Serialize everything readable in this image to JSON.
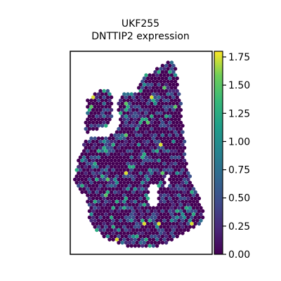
{
  "chart_data": {
    "type": "scatter",
    "title": "UKF255",
    "subtitle": "DNTTIP2 expression",
    "xlabel": "",
    "ylabel": "",
    "axes_ticks": "none",
    "grid": false,
    "colormap": "viridis",
    "colorbar": {
      "range": [
        0.0,
        1.8
      ],
      "ticks": [
        0.0,
        0.25,
        0.5,
        0.75,
        1.0,
        1.25,
        1.5,
        1.75
      ],
      "tick_labels": [
        "0.00",
        "0.25",
        "0.50",
        "0.75",
        "1.00",
        "1.25",
        "1.50",
        "1.75"
      ]
    },
    "spot_value_summary": {
      "most_common": 0.0,
      "frequent": [
        0.25,
        0.5
      ],
      "occasional": [
        0.75,
        1.0,
        1.25
      ],
      "rare": [
        1.5,
        1.75
      ]
    }
  }
}
